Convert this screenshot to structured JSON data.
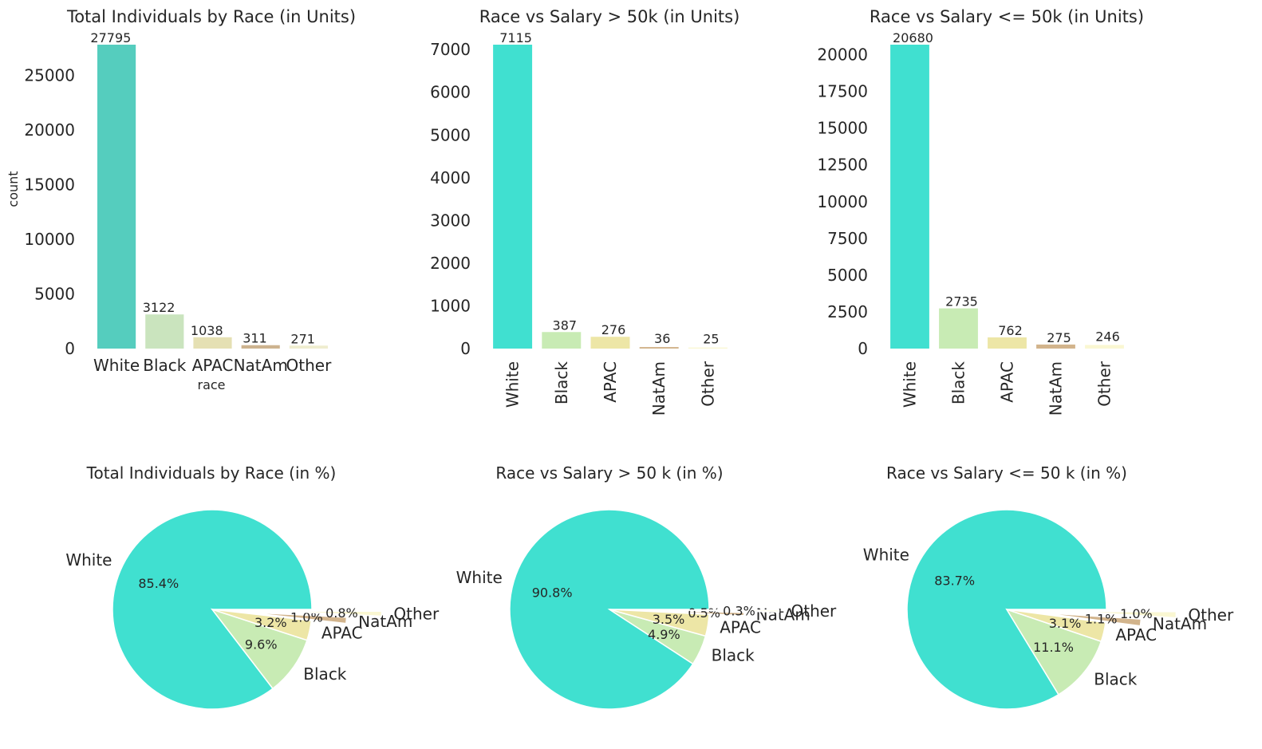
{
  "colors": {
    "White": "#40E0D0",
    "Black": "#C8EBB4",
    "APAC": "#EDE6A6",
    "NatAm": "#D2B48C",
    "Other": "#FAF7D2",
    "White_total_bar": "#55CDBE",
    "Black_total_bar": "#CAE4BE",
    "APAC_total_bar": "#E5E0B3",
    "NatAm_total_bar": "#CDB38F",
    "Other_total_bar": "#EFEDCF"
  },
  "chart_data": [
    {
      "type": "bar",
      "title": "Total Individuals by Race (in Units)",
      "xlabel": "race",
      "ylabel": "count",
      "categories": [
        "White",
        "Black",
        "APAC",
        "NatAm",
        "Other"
      ],
      "values": [
        27795,
        3122,
        1038,
        311,
        271
      ],
      "yticks": [
        "0",
        "5000",
        "10000",
        "15000",
        "20000",
        "25000"
      ],
      "ylim": [
        0,
        27795
      ],
      "rotate_labels": false,
      "color_set": "total"
    },
    {
      "type": "bar",
      "title": "Race vs Salary > 50k (in Units)",
      "xlabel": "",
      "ylabel": "",
      "categories": [
        "White",
        "Black",
        "APAC",
        "NatAm",
        "Other"
      ],
      "values": [
        7115,
        387,
        276,
        36,
        25
      ],
      "yticks": [
        "0",
        "1000",
        "2000",
        "3000",
        "4000",
        "5000",
        "6000",
        "7000"
      ],
      "ylim": [
        0,
        7115
      ],
      "rotate_labels": true,
      "color_set": "base"
    },
    {
      "type": "bar",
      "title": "Race vs Salary <= 50k (in Units)",
      "xlabel": "",
      "ylabel": "",
      "categories": [
        "White",
        "Black",
        "APAC",
        "NatAm",
        "Other"
      ],
      "values": [
        20680,
        2735,
        762,
        275,
        246
      ],
      "yticks": [
        "0",
        "2500",
        "5000",
        "7500",
        "10000",
        "12500",
        "15000",
        "17500",
        "20000"
      ],
      "ylim": [
        0,
        20680
      ],
      "rotate_labels": true,
      "color_set": "base"
    },
    {
      "type": "pie",
      "title": "Total Individuals by Race (in %)",
      "categories": [
        "White",
        "Black",
        "APAC",
        "NatAm",
        "Other"
      ],
      "values": [
        85.4,
        9.6,
        3.2,
        1.0,
        0.8
      ],
      "pct_labels": [
        "85.4%",
        "9.6%",
        "3.2%",
        "1.0%",
        "0.8%"
      ],
      "explode": [
        0,
        0,
        0,
        0.35,
        0.7
      ]
    },
    {
      "type": "pie",
      "title": "Race vs Salary > 50 k (in %)",
      "categories": [
        "White",
        "Black",
        "APAC",
        "NatAm",
        "Other"
      ],
      "values": [
        90.8,
        4.9,
        3.5,
        0.5,
        0.3
      ],
      "pct_labels": [
        "90.8%",
        "4.9%",
        "3.5%",
        "0.5%",
        "0.3%"
      ],
      "explode": [
        0,
        0,
        0,
        0.35,
        0.7
      ]
    },
    {
      "type": "pie",
      "title": "Race vs Salary <= 50 k (in %)",
      "categories": [
        "White",
        "Black",
        "APAC",
        "NatAm",
        "Other"
      ],
      "values": [
        83.7,
        11.1,
        3.1,
        1.1,
        1.0
      ],
      "pct_labels": [
        "83.7%",
        "11.1%",
        "3.1%",
        "1.1%",
        "1.0%"
      ],
      "explode": [
        0,
        0,
        0,
        0.35,
        0.7
      ]
    }
  ]
}
